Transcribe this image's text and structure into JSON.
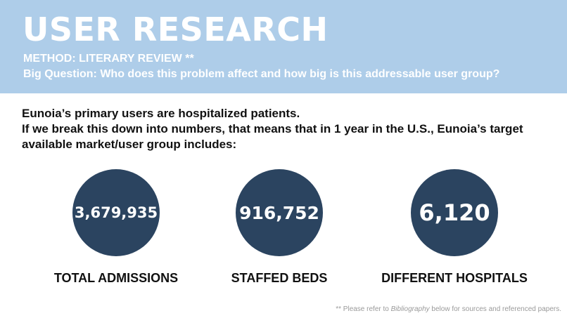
{
  "header": {
    "title": "USER RESEARCH",
    "method": "METHOD: LITERARY REVIEW **",
    "question": "Big Question: Who does this problem affect and how big is this addressable user group?"
  },
  "intro": {
    "line1": "Eunoia’s primary users are hospitalized patients.",
    "line2": "If we break this down into numbers, that means that in 1 year in the U.S., Eunoia’s target available market/user group includes:"
  },
  "stats": [
    {
      "value": "3,679,935",
      "label": "TOTAL ADMISSIONS"
    },
    {
      "value": "916,752",
      "label": "STAFFED BEDS"
    },
    {
      "value": "6,120",
      "label": "DIFFERENT HOSPITALS"
    }
  ],
  "footnote": {
    "prefix": "** Please refer to ",
    "emphasis": "Bibliography",
    "suffix": " below for sources and referenced papers."
  },
  "colors": {
    "header_bg": "#aecde9",
    "circle_bg": "#2b4460"
  }
}
